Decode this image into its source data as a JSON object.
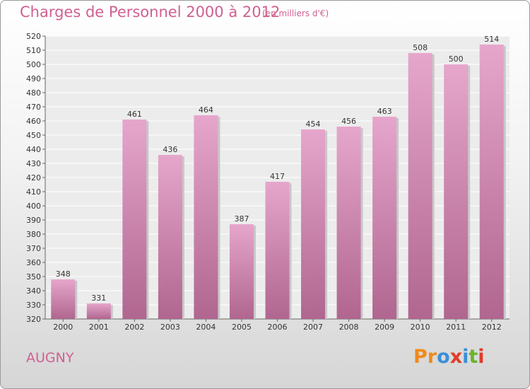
{
  "chart_data": {
    "type": "bar",
    "title": "Charges de Personnel 2000 à 2012",
    "subtitle": "(en milliers d'€)",
    "categories": [
      "2000",
      "2001",
      "2002",
      "2003",
      "2004",
      "2005",
      "2006",
      "2007",
      "2008",
      "2009",
      "2010",
      "2011",
      "2012"
    ],
    "values": [
      348,
      331,
      461,
      436,
      464,
      387,
      417,
      454,
      456,
      463,
      508,
      500,
      514
    ],
    "ylim": [
      320,
      520
    ],
    "yticks": [
      320,
      330,
      340,
      350,
      360,
      370,
      380,
      390,
      400,
      410,
      420,
      430,
      440,
      450,
      460,
      470,
      480,
      490,
      500,
      510,
      520
    ],
    "grid": true,
    "bar_color": "#c47aa6"
  },
  "commune": "AUGNY",
  "logo": {
    "text": "Proxiti",
    "letters": [
      {
        "ch": "P",
        "color": "#f08a1c"
      },
      {
        "ch": "r",
        "color": "#f08a1c"
      },
      {
        "ch": "o",
        "color": "#3a8fd8"
      },
      {
        "ch": "x",
        "color": "#e23a2a"
      },
      {
        "ch": "i",
        "color": "#3a8fd8"
      },
      {
        "ch": "t",
        "color": "#6ab42a"
      },
      {
        "ch": "i",
        "color": "#e23a2a"
      }
    ]
  }
}
